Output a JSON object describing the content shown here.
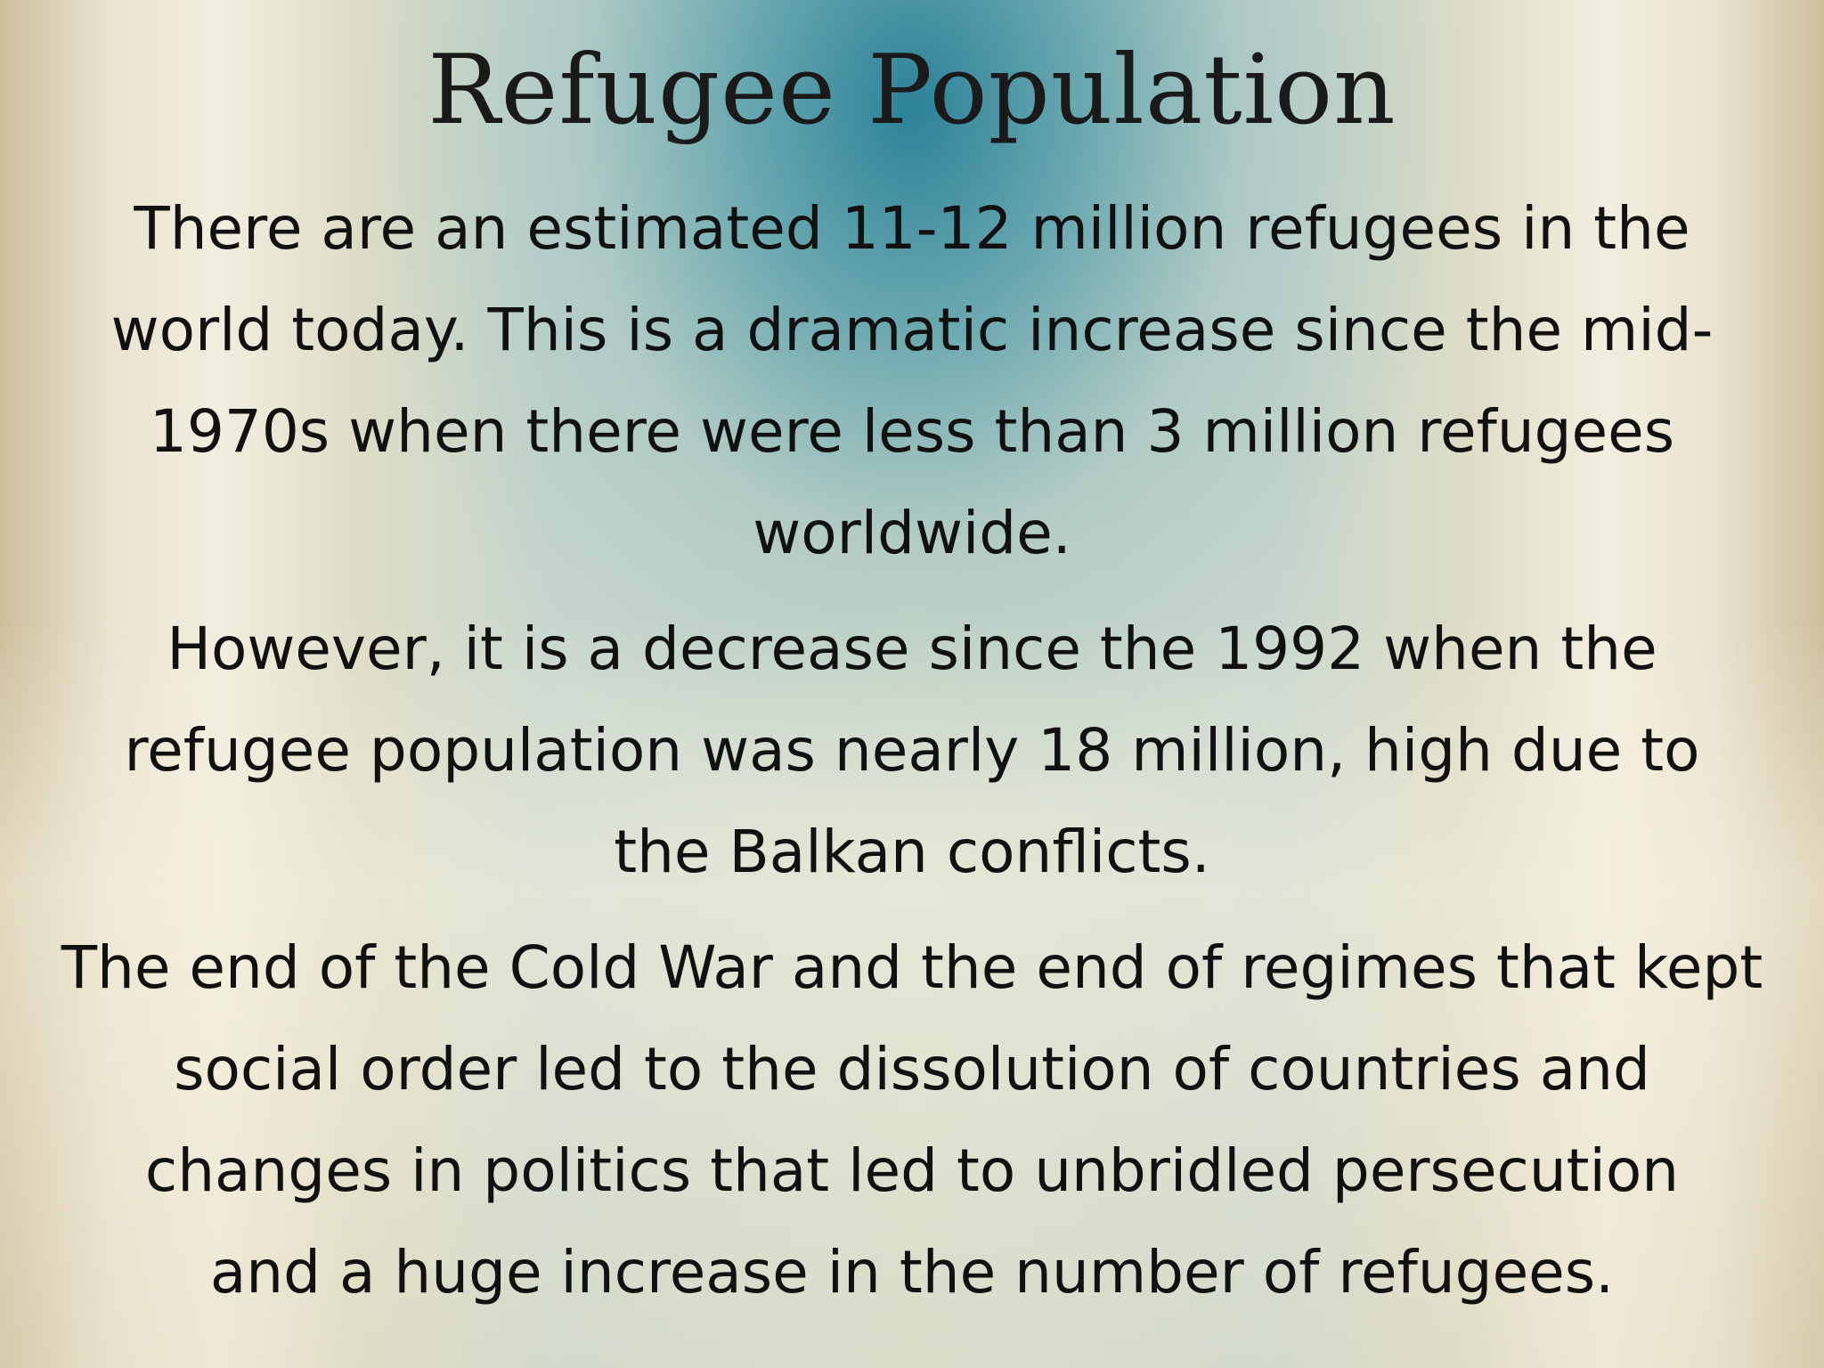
{
  "slide": {
    "title": "Refugee Population",
    "paragraphs": [
      {
        "lines": [
          "There are an estimated 11-12 million refugees in the",
          "world today. This is a dramatic increase since the mid-",
          "1970s when there were less than 3 million refugees",
          "worldwide."
        ]
      },
      {
        "lines": [
          "However, it is a decrease since the 1992 when the",
          "refugee population was nearly 18 million, high due to",
          "the Balkan conflicts."
        ]
      },
      {
        "lines": [
          "The end of the Cold War and the end of regimes that kept",
          "social order led to the dissolution of countries and",
          "changes in politics that led to unbridled persecution",
          "and a huge increase in the number of refugees."
        ]
      }
    ]
  }
}
